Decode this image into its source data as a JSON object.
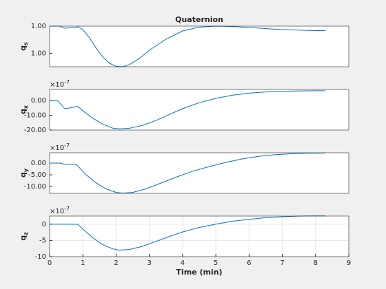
{
  "chart_data": [
    {
      "type": "line",
      "title": "Quaternion",
      "ylabel": "q",
      "ylabel_sub": "s",
      "color": "#0072bd",
      "grid": false,
      "xlim": [
        0,
        9
      ],
      "ylim": [
        0.99999985,
        1.0
      ],
      "yticks": [
        {
          "value": 0.9999999,
          "label": "1.00"
        },
        {
          "value": 1.0,
          "label": "1.00"
        }
      ],
      "x": [
        0,
        0.3,
        0.45,
        0.6,
        0.85,
        1.0,
        1.2,
        1.4,
        1.6,
        1.8,
        2.0,
        2.2,
        2.4,
        2.7,
        3.0,
        3.5,
        4.0,
        4.5,
        5.0,
        5.5,
        6.0,
        7.0,
        8.0,
        8.3
      ],
      "values": [
        1.0,
        1.0,
        0.9999999924,
        0.9999999936,
        0.9999999975,
        0.9999999873,
        0.9999999568,
        0.9999999187,
        0.9999998857,
        0.9999998628,
        0.9999998514,
        0.9999998501,
        0.9999998578,
        0.9999998806,
        0.9999999111,
        0.9999999517,
        0.9999999822,
        0.9999999962,
        1.0,
        0.9999999987,
        0.9999999949,
        0.9999999873,
        0.9999999835,
        0.9999999835
      ]
    },
    {
      "type": "line",
      "ylabel": "q",
      "ylabel_sub": "x",
      "exponent_base": "×10",
      "exponent_power": "-7",
      "color": "#0072bd",
      "grid": false,
      "xlim": [
        0,
        9
      ],
      "ylim": [
        -20,
        7.5
      ],
      "yticks": [
        {
          "value": -20,
          "label": "-20.00"
        },
        {
          "value": -10,
          "label": "-10.00"
        },
        {
          "value": 0,
          "label": "0.00"
        }
      ],
      "x": [
        0,
        0.25,
        0.45,
        0.6,
        0.85,
        1.0,
        1.3,
        1.6,
        1.9,
        2.1,
        2.4,
        2.8,
        3.2,
        3.6,
        4.0,
        4.5,
        5.0,
        5.5,
        6.0,
        6.5,
        7.0,
        7.5,
        8.0,
        8.3
      ],
      "values": [
        0,
        -0.3,
        -5.5,
        -5,
        -4,
        -7,
        -12,
        -16,
        -18.7,
        -19.2,
        -18.8,
        -16.8,
        -13.5,
        -9.5,
        -5.5,
        -1.5,
        1.5,
        3.6,
        5,
        5.8,
        6.3,
        6.5,
        6.6,
        6.6
      ]
    },
    {
      "type": "line",
      "ylabel": "q",
      "ylabel_sub": "y",
      "exponent_base": "×10",
      "exponent_power": "-7",
      "color": "#0072bd",
      "grid": false,
      "xlim": [
        0,
        9
      ],
      "ylim": [
        -12.9,
        4.4
      ],
      "yticks": [
        {
          "value": -10,
          "label": "-10.00"
        },
        {
          "value": -5,
          "label": "-5.00"
        },
        {
          "value": 0,
          "label": "0.00"
        }
      ],
      "x": [
        0,
        0.3,
        0.45,
        0.8,
        0.9,
        1.1,
        1.4,
        1.7,
        2.0,
        2.2,
        2.5,
        2.9,
        3.3,
        3.8,
        4.3,
        4.8,
        5.3,
        5.8,
        6.3,
        6.8,
        7.3,
        7.8,
        8.3
      ],
      "values": [
        0,
        0,
        -0.5,
        -0.6,
        -2,
        -5,
        -8.5,
        -11,
        -12.5,
        -12.8,
        -12.5,
        -11,
        -8.8,
        -6,
        -3.5,
        -1.5,
        0.3,
        1.8,
        2.9,
        3.6,
        4.0,
        4.2,
        4.3
      ]
    },
    {
      "type": "line",
      "ylabel": "q",
      "ylabel_sub": "z",
      "exponent_base": "×10",
      "exponent_power": "-7",
      "xlabel": "Time (min)",
      "color": "#0072bd",
      "grid": true,
      "xlim": [
        0,
        9
      ],
      "ylim": [
        -10,
        2.5
      ],
      "xticks": [
        0,
        1,
        2,
        3,
        4,
        5,
        6,
        7,
        8,
        9
      ],
      "yticks": [
        -10,
        -5,
        0
      ],
      "x": [
        0,
        0.85,
        1.0,
        1.3,
        1.6,
        1.9,
        2.1,
        2.4,
        2.8,
        3.2,
        3.6,
        4.0,
        4.5,
        5.0,
        5.5,
        6.0,
        6.5,
        7.0,
        7.5,
        8.0,
        8.3
      ],
      "values": [
        0,
        -0.05,
        -1.5,
        -4.2,
        -6.3,
        -7.6,
        -8,
        -7.8,
        -6.8,
        -5.3,
        -3.8,
        -2.4,
        -1,
        0,
        0.9,
        1.5,
        2,
        2.3,
        2.5,
        2.55,
        2.55
      ]
    }
  ]
}
